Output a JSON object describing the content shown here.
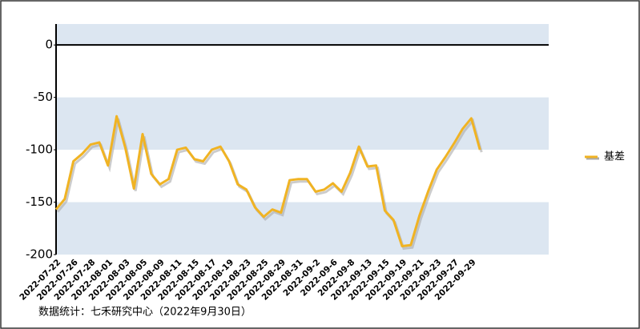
{
  "chart_data": {
    "type": "line",
    "categories": [
      "2022-07-22",
      null,
      "2022-07-26",
      null,
      "2022-07-28",
      null,
      "2022-08-01",
      null,
      "2022-08-03",
      null,
      "2022-08-05",
      null,
      "2022-08-09",
      null,
      "2022-08-11",
      null,
      "2022-08-15",
      null,
      "2022-08-17",
      null,
      "2022-08-19",
      null,
      "2022-08-23",
      null,
      "2022-08-25",
      null,
      "2022-08-29",
      null,
      "2022-08-31",
      null,
      "2022-09-2",
      null,
      "2022-09-6",
      null,
      "2022-09-8",
      null,
      "2022-09-13",
      null,
      "2022-09-15",
      null,
      "2022-09-19",
      null,
      "2022-09-21",
      null,
      "2022-09-23",
      null,
      "2022-09-27",
      null,
      "2022-09-29",
      null
    ],
    "series": [
      {
        "name": "基差",
        "color": "#f0b323",
        "values": [
          -157,
          -147,
          -111,
          -104,
          -95,
          -93,
          -115,
          -68,
          -98,
          -137,
          -85,
          -123,
          -133,
          -128,
          -100,
          -98,
          -109,
          -111,
          -100,
          -97,
          -111,
          -133,
          -138,
          -155,
          -164,
          -157,
          -160,
          -129,
          -128,
          -128,
          -140,
          -138,
          -132,
          -140,
          -122,
          -97,
          -116,
          -115,
          -158,
          -167,
          -192,
          -191,
          -163,
          -140,
          -119,
          -107,
          -94,
          -80,
          -70,
          -100
        ]
      }
    ],
    "ylim": [
      -200,
      20
    ],
    "yticks": [
      0,
      -50,
      -100,
      -150,
      -200
    ],
    "legend": "right",
    "footnote": "数据统计：七禾研究中心（2022年9月30日）"
  }
}
